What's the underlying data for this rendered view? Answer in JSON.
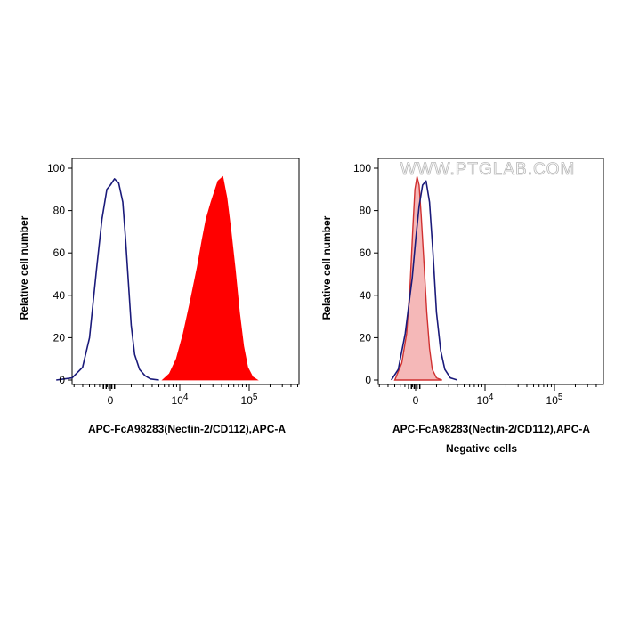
{
  "watermark": "WWW.PTGLAB.COM",
  "chart_data": [
    {
      "type": "area",
      "ylabel": "Relative cell number",
      "xlabel": "APC-FcA98283(Nectin-2/CD112),APC-A",
      "subtitle": "",
      "ylim": [
        0,
        100
      ],
      "yticks": [
        "0",
        "20",
        "40",
        "60",
        "80",
        "100"
      ],
      "xticks": [
        {
          "label": "0",
          "pos": 0
        },
        {
          "label": "10",
          "exp": "4",
          "pos": 1
        },
        {
          "label": "10",
          "exp": "5",
          "pos": 2
        }
      ],
      "series": [
        {
          "style": "outline",
          "color": "#1a1a7a",
          "x": [
            -0.78,
            -0.55,
            -0.4,
            -0.3,
            -0.2,
            -0.12,
            -0.05,
            0.0,
            0.06,
            0.12,
            0.18,
            0.22,
            0.26,
            0.3,
            0.35,
            0.42,
            0.5,
            0.58,
            0.7
          ],
          "y": [
            0,
            1,
            6,
            20,
            52,
            76,
            90,
            92,
            95,
            93,
            84,
            66,
            46,
            26,
            12,
            5,
            2,
            0.5,
            0
          ]
        },
        {
          "style": "filled",
          "color": "#ff0000",
          "x": [
            0.75,
            0.85,
            0.95,
            1.05,
            1.15,
            1.25,
            1.32,
            1.38,
            1.45,
            1.5,
            1.55,
            1.62,
            1.68,
            1.74,
            1.8,
            1.86,
            1.92,
            1.98,
            2.05,
            2.12
          ],
          "y": [
            0,
            3,
            10,
            22,
            37,
            53,
            66,
            76,
            84,
            89,
            94,
            96,
            86,
            70,
            52,
            32,
            16,
            6,
            1.5,
            0
          ]
        }
      ]
    },
    {
      "type": "area",
      "ylabel": "Relative cell number",
      "xlabel": "APC-FcA98283(Nectin-2/CD112),APC-A",
      "subtitle": "Negative cells",
      "ylim": [
        0,
        100
      ],
      "yticks": [
        "0",
        "20",
        "40",
        "60",
        "80",
        "100"
      ],
      "xticks": [
        {
          "label": "0",
          "pos": 0
        },
        {
          "label": "10",
          "exp": "4",
          "pos": 1
        },
        {
          "label": "10",
          "exp": "5",
          "pos": 2
        }
      ],
      "series": [
        {
          "style": "filled-light",
          "color": "#f2a0a0",
          "line": "#d03030",
          "x": [
            -0.3,
            -0.2,
            -0.13,
            -0.08,
            -0.04,
            -0.01,
            0.02,
            0.05,
            0.08,
            0.12,
            0.16,
            0.2,
            0.24,
            0.3,
            0.38
          ],
          "y": [
            0,
            8,
            22,
            45,
            72,
            90,
            96,
            92,
            78,
            55,
            32,
            15,
            5,
            1,
            0
          ]
        },
        {
          "style": "outline",
          "color": "#1a1a7a",
          "x": [
            -0.35,
            -0.25,
            -0.15,
            -0.05,
            0.0,
            0.05,
            0.1,
            0.15,
            0.2,
            0.25,
            0.3,
            0.36,
            0.42,
            0.5,
            0.6
          ],
          "y": [
            0,
            5,
            22,
            48,
            66,
            82,
            92,
            94,
            84,
            60,
            32,
            14,
            5,
            1,
            0
          ]
        }
      ]
    }
  ]
}
